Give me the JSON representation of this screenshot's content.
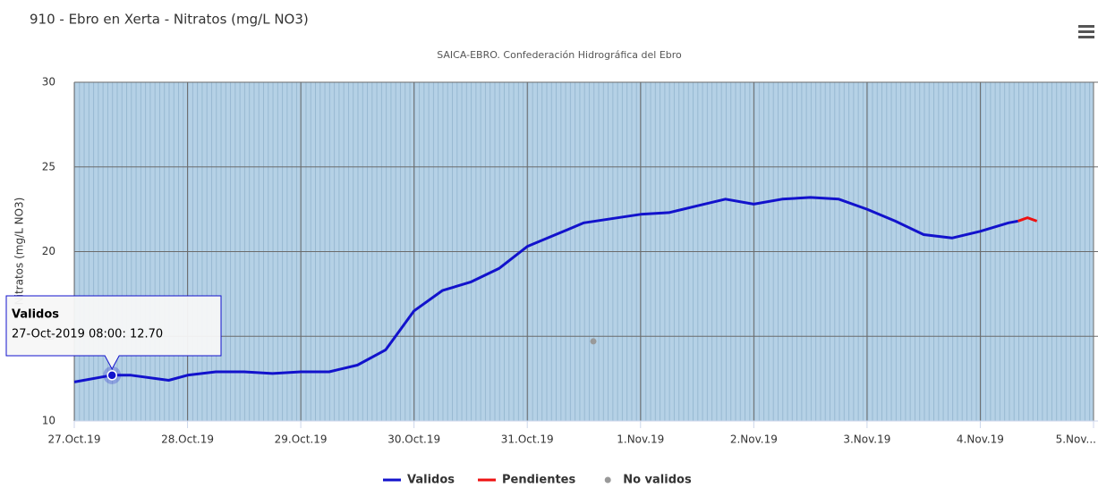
{
  "chart_data": {
    "type": "line",
    "title": "910 - Ebro en Xerta - Nitratos (mg/L NO3)",
    "subtitle": "SAICA-EBRO. Confederación Hidrográfica del Ebro",
    "y_label": "Nitratos (mg/L NO3)",
    "xlim": [
      "2019-10-27T00:00",
      "2019-11-05T00:00"
    ],
    "xticks": [
      {
        "value": "2019-10-27T00:00",
        "label": "27.Oct.19"
      },
      {
        "value": "2019-10-28T00:00",
        "label": "28.Oct.19"
      },
      {
        "value": "2019-10-29T00:00",
        "label": "29.Oct.19"
      },
      {
        "value": "2019-10-30T00:00",
        "label": "30.Oct.19"
      },
      {
        "value": "2019-10-31T00:00",
        "label": "31.Oct.19"
      },
      {
        "value": "2019-11-01T00:00",
        "label": "1.Nov.19"
      },
      {
        "value": "2019-11-02T00:00",
        "label": "2.Nov.19"
      },
      {
        "value": "2019-11-03T00:00",
        "label": "3.Nov.19"
      },
      {
        "value": "2019-11-04T00:00",
        "label": "4.Nov.19"
      },
      {
        "value": "2019-11-05T00:00",
        "label": "5.Nov..."
      }
    ],
    "ylim": [
      10,
      30
    ],
    "yticks": [
      10,
      15,
      20,
      25,
      30
    ],
    "grid": true,
    "series": [
      {
        "name": "Validos",
        "color": "#1212cc",
        "kind": "line",
        "x": [
          "2019-10-27T00:00",
          "2019-10-27T06:00",
          "2019-10-27T08:00",
          "2019-10-27T12:00",
          "2019-10-27T20:00",
          "2019-10-28T00:00",
          "2019-10-28T06:00",
          "2019-10-28T12:00",
          "2019-10-28T18:00",
          "2019-10-29T00:00",
          "2019-10-29T06:00",
          "2019-10-29T12:00",
          "2019-10-29T18:00",
          "2019-10-30T00:00",
          "2019-10-30T06:00",
          "2019-10-30T12:00",
          "2019-10-30T18:00",
          "2019-10-31T00:00",
          "2019-10-31T06:00",
          "2019-10-31T12:00",
          "2019-11-01T00:00",
          "2019-11-01T06:00",
          "2019-11-01T12:00",
          "2019-11-01T18:00",
          "2019-11-02T00:00",
          "2019-11-02T06:00",
          "2019-11-02T12:00",
          "2019-11-02T18:00",
          "2019-11-03T00:00",
          "2019-11-03T06:00",
          "2019-11-03T12:00",
          "2019-11-03T18:00",
          "2019-11-04T00:00",
          "2019-11-04T06:00",
          "2019-11-04T08:00"
        ],
        "values": [
          12.3,
          12.6,
          12.7,
          12.7,
          12.4,
          12.7,
          12.9,
          12.9,
          12.8,
          12.9,
          12.9,
          13.3,
          14.2,
          16.5,
          17.7,
          18.2,
          19.0,
          20.3,
          21.0,
          21.7,
          22.2,
          22.3,
          22.7,
          23.1,
          22.8,
          23.1,
          23.2,
          23.1,
          22.5,
          21.8,
          21.0,
          20.8,
          21.2,
          21.7,
          21.8
        ]
      },
      {
        "name": "Pendientes",
        "color": "#ee1111",
        "kind": "line",
        "x": [
          "2019-11-04T08:00",
          "2019-11-04T10:00",
          "2019-11-04T12:00"
        ],
        "values": [
          21.8,
          22.0,
          21.8
        ]
      },
      {
        "name": "No validos",
        "color": "#999999",
        "kind": "marker",
        "x": [
          "2019-10-31T14:00"
        ],
        "values": [
          14.7
        ]
      }
    ],
    "tooltip": {
      "title": "Validos",
      "text": "27-Oct-2019 08:00: 12.70"
    }
  }
}
